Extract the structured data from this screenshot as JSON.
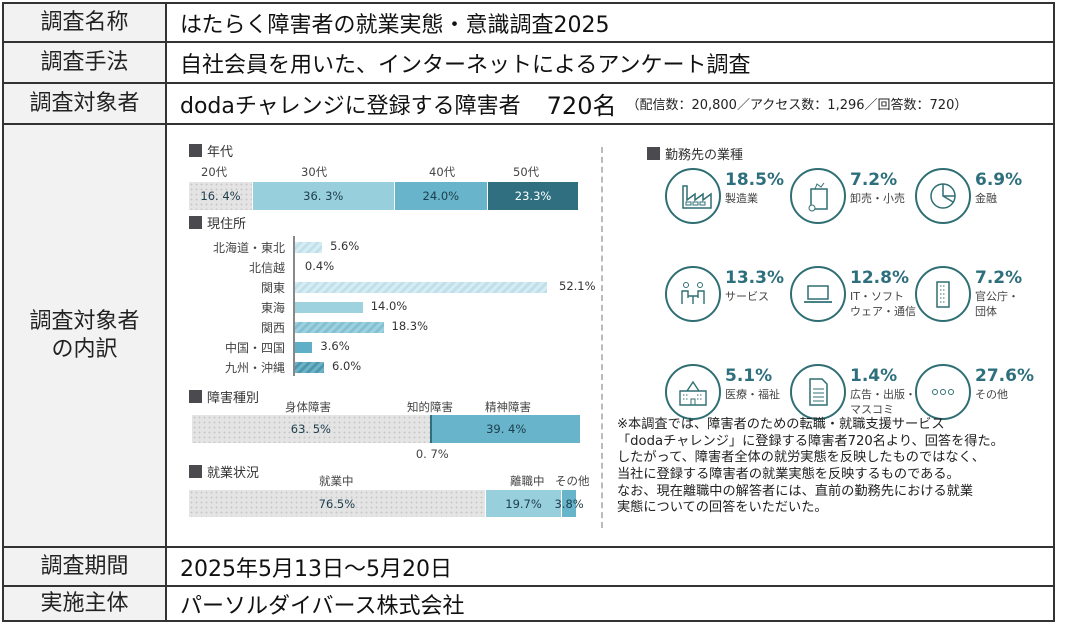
{
  "rows": {
    "name": {
      "label": "調査名称",
      "value": "はたらく障害者の就業実態・意識調査2025"
    },
    "method": {
      "label": "調査手法",
      "value": "自社会員を用いた、インターネットによるアンケート調査"
    },
    "target": {
      "label": "調査対象者",
      "value": "dodaチャレンジに登録する障害者",
      "count": "720名",
      "detail": "（配信数：20,800／アクセス数：1,296／回答数：720）"
    },
    "breakdown": {
      "label_line1": "調査対象者",
      "label_line2": "の内訳"
    },
    "period": {
      "label": "調査期間",
      "value": "2025年5月13日～5月20日"
    },
    "organizer": {
      "label": "実施主体",
      "value": "パーソルダイバース株式会社"
    }
  },
  "chart_data": [
    {
      "type": "bar",
      "title": "年代",
      "stacked": true,
      "categories": [
        "20代",
        "30代",
        "40代",
        "50代"
      ],
      "values": [
        16.4,
        36.3,
        24.0,
        23.3
      ],
      "value_labels": [
        "16. 4%",
        "36. 3%",
        "24.0%",
        "23.3%"
      ],
      "colors": [
        "#e4e4e4",
        "#98cfdc",
        "#68b4ca",
        "#2f6f80"
      ]
    },
    {
      "type": "bar",
      "title": "現住所",
      "orientation": "horizontal",
      "categories": [
        "北海道・東北",
        "北信越",
        "関東",
        "東海",
        "関西",
        "中国・四国",
        "九州・沖縄"
      ],
      "values": [
        5.6,
        0.4,
        52.1,
        14.0,
        18.3,
        3.6,
        6.0
      ],
      "value_labels": [
        "5.6%",
        "0.4%",
        "52.1%",
        "14.0%",
        "18.3%",
        "3.6%",
        "6.0%"
      ],
      "xlim": [
        0,
        52.1
      ]
    },
    {
      "type": "bar",
      "title": "障害種別",
      "stacked": true,
      "categories": [
        "身体障害",
        "知的障害",
        "精神障害"
      ],
      "values": [
        63.5,
        0.7,
        39.4
      ],
      "value_labels": [
        "63. 5%",
        "0. 7%",
        "39. 4%"
      ],
      "colors": [
        "#e4e4e4",
        "#2f6f80",
        "#68b4ca"
      ]
    },
    {
      "type": "bar",
      "title": "就業状況",
      "stacked": true,
      "categories": [
        "就業中",
        "離職中",
        "その他"
      ],
      "values": [
        76.5,
        19.7,
        3.8
      ],
      "value_labels": [
        "76.5%",
        "19.7%",
        "3.8%"
      ],
      "colors": [
        "#e4e4e4",
        "#98cfdc",
        "#68b4ca"
      ]
    },
    {
      "type": "table",
      "title": "勤務先の業種",
      "categories": [
        "製造業",
        "卸売・小売",
        "金融",
        "サービス",
        "IT・ソフトウェア・通信",
        "官公庁・団体",
        "医療・福祉",
        "広告・出版・マスコミ",
        "その他"
      ],
      "values": [
        18.5,
        7.2,
        6.9,
        13.3,
        12.8,
        7.2,
        5.1,
        1.4,
        27.6
      ]
    }
  ],
  "industries": [
    {
      "pct": "18.5%",
      "line1": "製造業",
      "line2": "",
      "icon": "factory-icon"
    },
    {
      "pct": "7.2%",
      "line1": "卸売・小売",
      "line2": "",
      "icon": "shopping-bag-icon"
    },
    {
      "pct": "6.9%",
      "line1": "金融",
      "line2": "",
      "icon": "pie-chart-icon"
    },
    {
      "pct": "13.3%",
      "line1": "サービス",
      "line2": "",
      "icon": "people-table-icon"
    },
    {
      "pct": "12.8%",
      "line1": "IT・ソフト",
      "line2": "ウェア・通信",
      "icon": "laptop-icon"
    },
    {
      "pct": "7.2%",
      "line1": "官公庁・",
      "line2": "団体",
      "icon": "building-icon"
    },
    {
      "pct": "5.1%",
      "line1": "医療・福祉",
      "line2": "",
      "icon": "hospital-icon"
    },
    {
      "pct": "1.4%",
      "line1": "広告・出版・",
      "line2": "マスコミ",
      "icon": "document-icon"
    },
    {
      "pct": "27.6%",
      "line1": "その他",
      "line2": "",
      "icon": "more-dots-icon"
    }
  ],
  "note_lines": [
    "※本調査では、障害者のための転職・就職支援サービス",
    "「dodaチャレンジ」に登録する障害者720名より、回答を得た。",
    "したがって、障害者全体の就労実態を反映したものではなく、",
    "当社に登録する障害者の就業実態を反映するものである。",
    "なお、現在離職中の解答者には、直前の勤務先における就業",
    "実態についての回答をいただいた。"
  ]
}
